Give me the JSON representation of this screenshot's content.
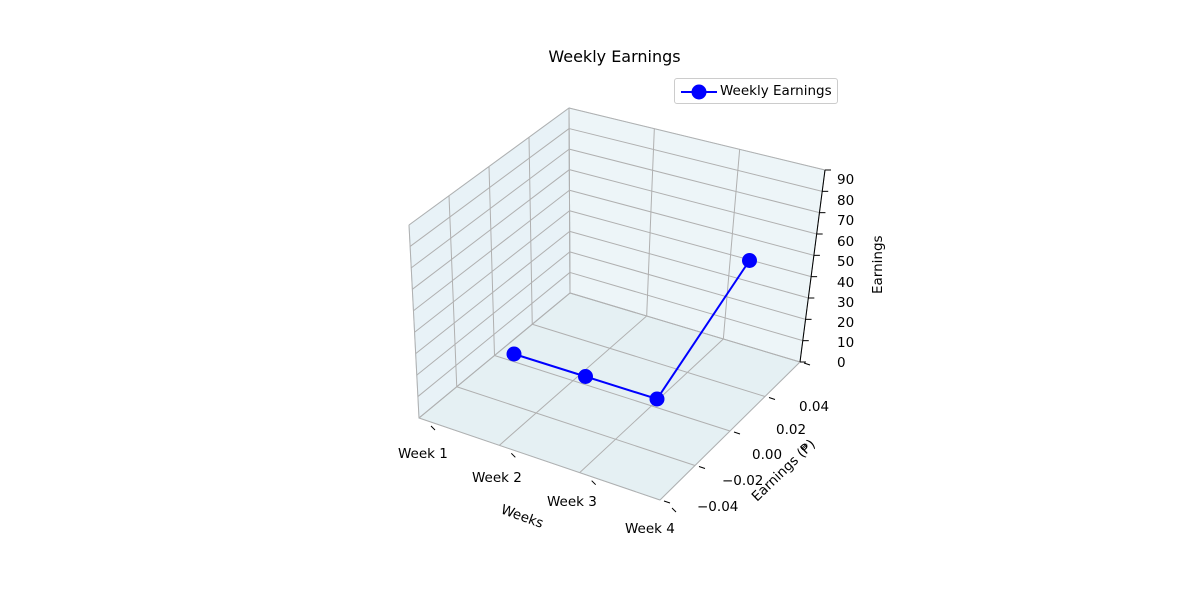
{
  "chart_data": {
    "type": "line",
    "projection": "3d",
    "title": "Weekly Earnings",
    "xlabel": "Weeks",
    "ylabel": "Earnings (₱)",
    "zlabel": "Earnings",
    "categories": [
      "Week 1",
      "Week 2",
      "Week 3",
      "Week 4"
    ],
    "y_ticks": [
      "−0.04",
      "−0.02",
      "0.00",
      "0.02",
      "0.04"
    ],
    "z_ticks": [
      "0",
      "10",
      "20",
      "30",
      "40",
      "50",
      "60",
      "70",
      "80",
      "90"
    ],
    "zlim": [
      0,
      90
    ],
    "grid": true,
    "legend_position": "top-right",
    "series": [
      {
        "name": "Weekly Earnings",
        "y": [
          0,
          0,
          0,
          0
        ],
        "values": [
          0,
          0,
          0,
          70
        ],
        "color": "#0000ff",
        "marker": "circle"
      }
    ],
    "colors": {
      "axes_background": "#add8e6",
      "pane": "#d4e6ee",
      "grid": "#b0b0b0",
      "line": "#0000ff"
    }
  }
}
